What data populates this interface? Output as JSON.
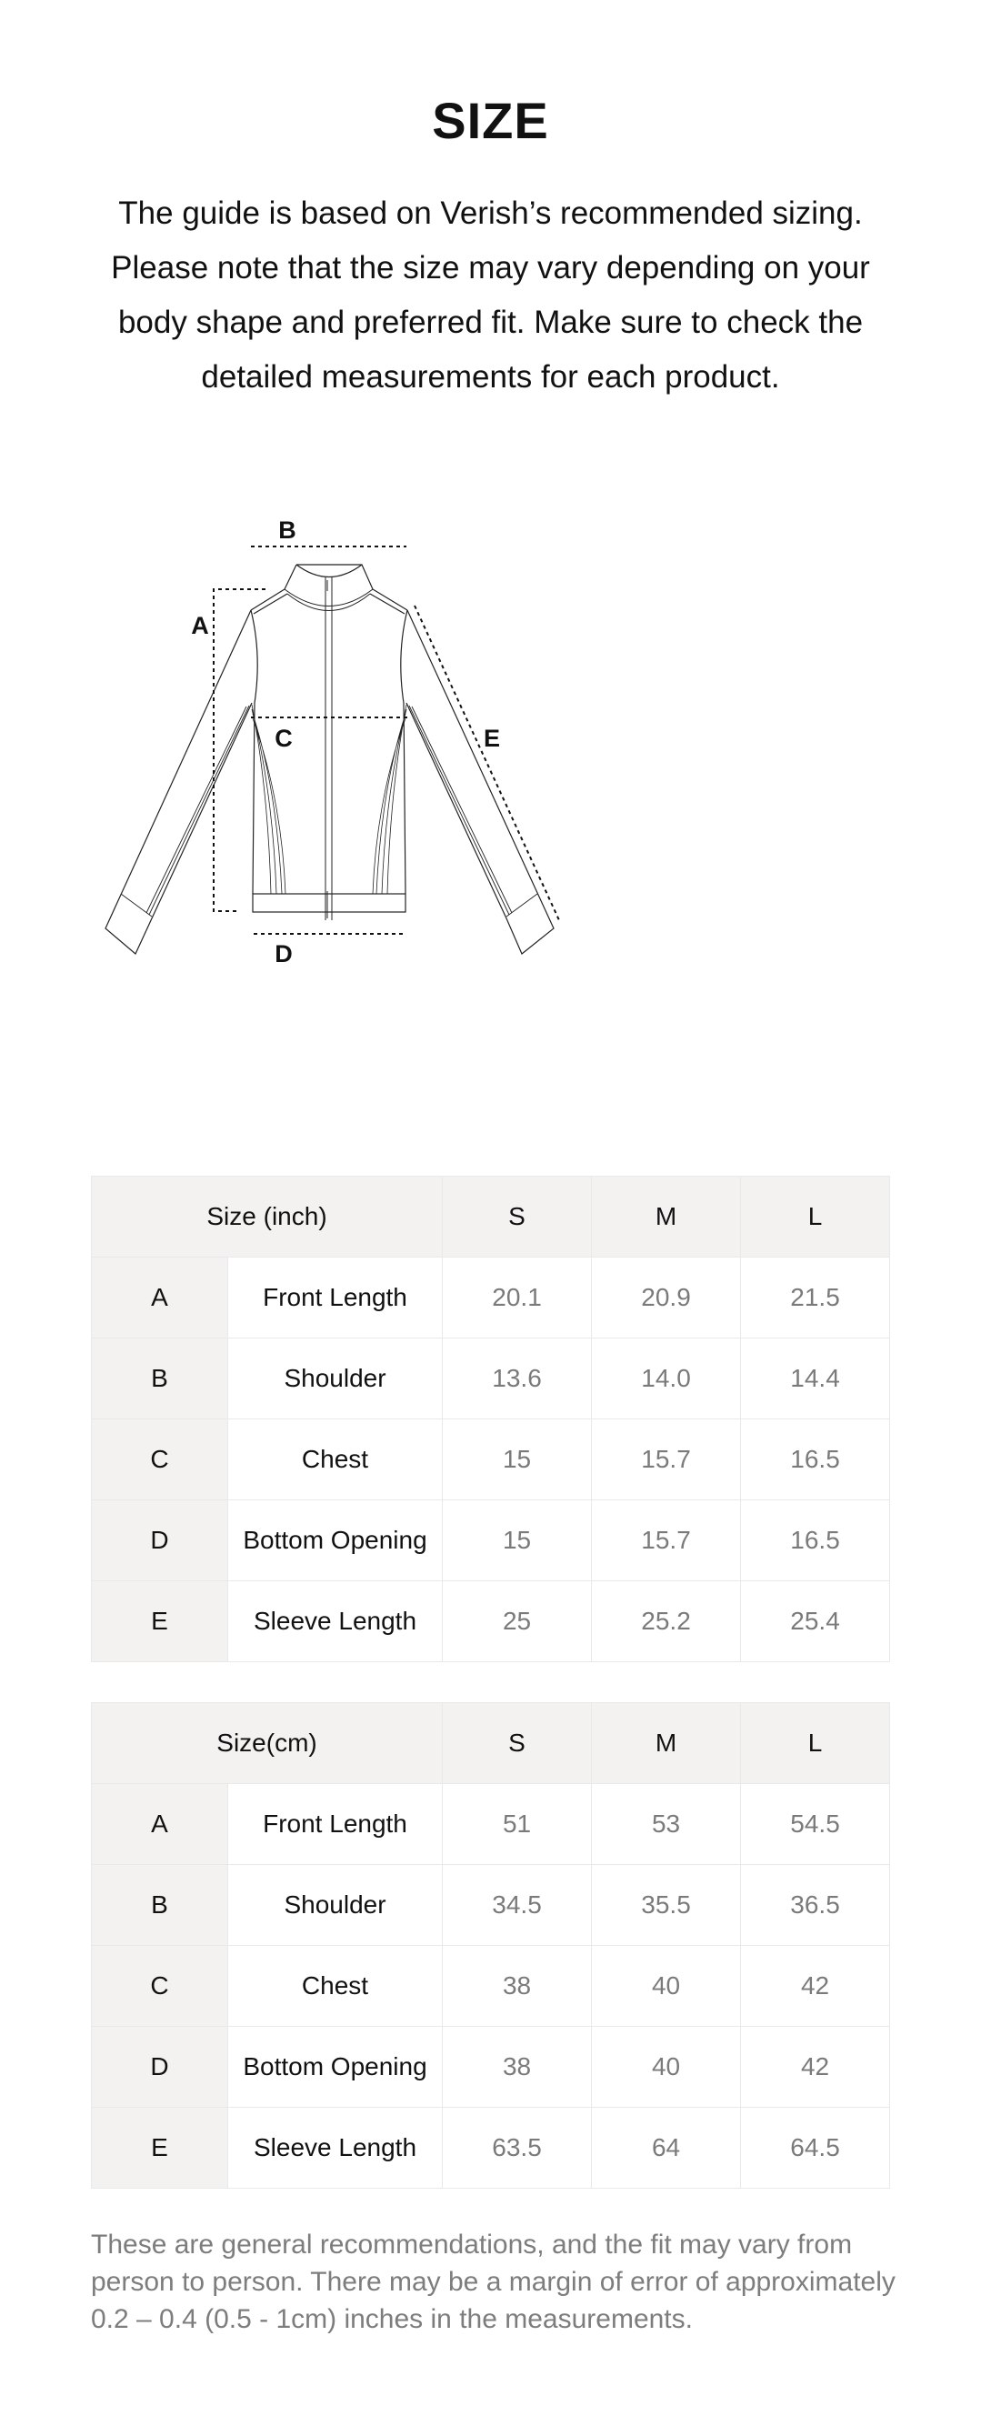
{
  "title": "SIZE",
  "intro": "The guide is based on Verish’s recommended sizing. Please note that the size may vary depending on your body shape and preferred fit. Make sure to check the detailed measurements for each product.",
  "diagram": {
    "labels": {
      "a": "A",
      "b": "B",
      "c": "C",
      "d": "D",
      "e": "E"
    }
  },
  "tables": [
    {
      "header": "Size (inch)",
      "sizes": [
        "S",
        "M",
        "L"
      ],
      "rows": [
        {
          "key": "A",
          "name": "Front Length",
          "values": [
            "20.1",
            "20.9",
            "21.5"
          ]
        },
        {
          "key": "B",
          "name": "Shoulder",
          "values": [
            "13.6",
            "14.0",
            "14.4"
          ]
        },
        {
          "key": "C",
          "name": "Chest",
          "values": [
            "15",
            "15.7",
            "16.5"
          ]
        },
        {
          "key": "D",
          "name": "Bottom Opening",
          "values": [
            "15",
            "15.7",
            "16.5"
          ]
        },
        {
          "key": "E",
          "name": "Sleeve Length",
          "values": [
            "25",
            "25.2",
            "25.4"
          ]
        }
      ]
    },
    {
      "header": "Size(cm)",
      "sizes": [
        "S",
        "M",
        "L"
      ],
      "rows": [
        {
          "key": "A",
          "name": "Front Length",
          "values": [
            "51",
            "53",
            "54.5"
          ]
        },
        {
          "key": "B",
          "name": "Shoulder",
          "values": [
            "34.5",
            "35.5",
            "36.5"
          ]
        },
        {
          "key": "C",
          "name": "Chest",
          "values": [
            "38",
            "40",
            "42"
          ]
        },
        {
          "key": "D",
          "name": "Bottom Opening",
          "values": [
            "38",
            "40",
            "42"
          ]
        },
        {
          "key": "E",
          "name": "Sleeve Length",
          "values": [
            "63.5",
            "64",
            "64.5"
          ]
        }
      ]
    }
  ],
  "note": "These are general recommendations, and the fit may vary from person to person. There may be a margin of error of approximately 0.2 – 0.4 (0.5 - 1cm) inches in the measurements."
}
